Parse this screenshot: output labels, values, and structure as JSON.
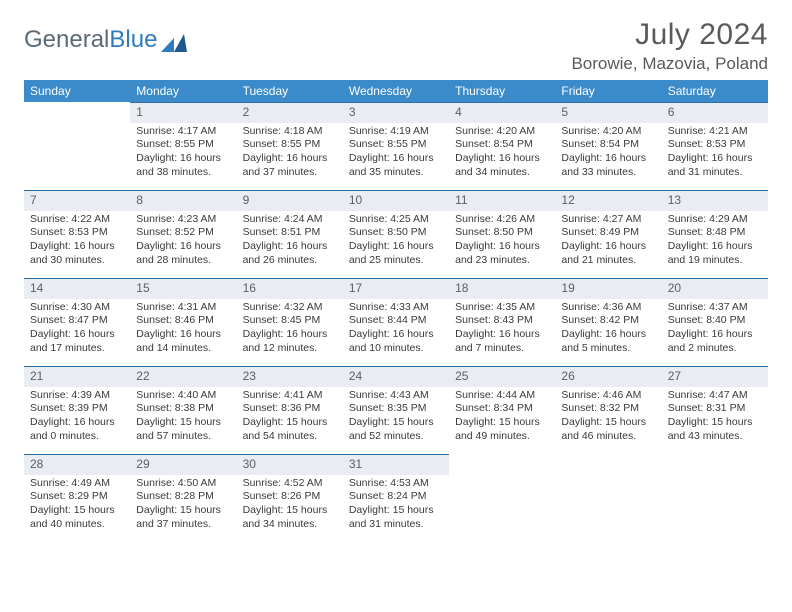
{
  "brand": {
    "part1": "General",
    "part2": "Blue"
  },
  "title": "July 2024",
  "location": "Borowie, Mazovia, Poland",
  "colors": {
    "header_bg": "#3b8bca",
    "header_text": "#ffffff",
    "daynum_bg": "#e9edf1",
    "daynum_border": "#2f6fa8",
    "body_bg": "#ffffff",
    "text": "#3a3a3a",
    "title_text": "#5a5a5a"
  },
  "day_headers": [
    "Sunday",
    "Monday",
    "Tuesday",
    "Wednesday",
    "Thursday",
    "Friday",
    "Saturday"
  ],
  "weeks": [
    [
      {
        "num": "",
        "sunrise": "",
        "sunset": "",
        "daylight": ""
      },
      {
        "num": "1",
        "sunrise": "Sunrise: 4:17 AM",
        "sunset": "Sunset: 8:55 PM",
        "daylight": "Daylight: 16 hours and 38 minutes."
      },
      {
        "num": "2",
        "sunrise": "Sunrise: 4:18 AM",
        "sunset": "Sunset: 8:55 PM",
        "daylight": "Daylight: 16 hours and 37 minutes."
      },
      {
        "num": "3",
        "sunrise": "Sunrise: 4:19 AM",
        "sunset": "Sunset: 8:55 PM",
        "daylight": "Daylight: 16 hours and 35 minutes."
      },
      {
        "num": "4",
        "sunrise": "Sunrise: 4:20 AM",
        "sunset": "Sunset: 8:54 PM",
        "daylight": "Daylight: 16 hours and 34 minutes."
      },
      {
        "num": "5",
        "sunrise": "Sunrise: 4:20 AM",
        "sunset": "Sunset: 8:54 PM",
        "daylight": "Daylight: 16 hours and 33 minutes."
      },
      {
        "num": "6",
        "sunrise": "Sunrise: 4:21 AM",
        "sunset": "Sunset: 8:53 PM",
        "daylight": "Daylight: 16 hours and 31 minutes."
      }
    ],
    [
      {
        "num": "7",
        "sunrise": "Sunrise: 4:22 AM",
        "sunset": "Sunset: 8:53 PM",
        "daylight": "Daylight: 16 hours and 30 minutes."
      },
      {
        "num": "8",
        "sunrise": "Sunrise: 4:23 AM",
        "sunset": "Sunset: 8:52 PM",
        "daylight": "Daylight: 16 hours and 28 minutes."
      },
      {
        "num": "9",
        "sunrise": "Sunrise: 4:24 AM",
        "sunset": "Sunset: 8:51 PM",
        "daylight": "Daylight: 16 hours and 26 minutes."
      },
      {
        "num": "10",
        "sunrise": "Sunrise: 4:25 AM",
        "sunset": "Sunset: 8:50 PM",
        "daylight": "Daylight: 16 hours and 25 minutes."
      },
      {
        "num": "11",
        "sunrise": "Sunrise: 4:26 AM",
        "sunset": "Sunset: 8:50 PM",
        "daylight": "Daylight: 16 hours and 23 minutes."
      },
      {
        "num": "12",
        "sunrise": "Sunrise: 4:27 AM",
        "sunset": "Sunset: 8:49 PM",
        "daylight": "Daylight: 16 hours and 21 minutes."
      },
      {
        "num": "13",
        "sunrise": "Sunrise: 4:29 AM",
        "sunset": "Sunset: 8:48 PM",
        "daylight": "Daylight: 16 hours and 19 minutes."
      }
    ],
    [
      {
        "num": "14",
        "sunrise": "Sunrise: 4:30 AM",
        "sunset": "Sunset: 8:47 PM",
        "daylight": "Daylight: 16 hours and 17 minutes."
      },
      {
        "num": "15",
        "sunrise": "Sunrise: 4:31 AM",
        "sunset": "Sunset: 8:46 PM",
        "daylight": "Daylight: 16 hours and 14 minutes."
      },
      {
        "num": "16",
        "sunrise": "Sunrise: 4:32 AM",
        "sunset": "Sunset: 8:45 PM",
        "daylight": "Daylight: 16 hours and 12 minutes."
      },
      {
        "num": "17",
        "sunrise": "Sunrise: 4:33 AM",
        "sunset": "Sunset: 8:44 PM",
        "daylight": "Daylight: 16 hours and 10 minutes."
      },
      {
        "num": "18",
        "sunrise": "Sunrise: 4:35 AM",
        "sunset": "Sunset: 8:43 PM",
        "daylight": "Daylight: 16 hours and 7 minutes."
      },
      {
        "num": "19",
        "sunrise": "Sunrise: 4:36 AM",
        "sunset": "Sunset: 8:42 PM",
        "daylight": "Daylight: 16 hours and 5 minutes."
      },
      {
        "num": "20",
        "sunrise": "Sunrise: 4:37 AM",
        "sunset": "Sunset: 8:40 PM",
        "daylight": "Daylight: 16 hours and 2 minutes."
      }
    ],
    [
      {
        "num": "21",
        "sunrise": "Sunrise: 4:39 AM",
        "sunset": "Sunset: 8:39 PM",
        "daylight": "Daylight: 16 hours and 0 minutes."
      },
      {
        "num": "22",
        "sunrise": "Sunrise: 4:40 AM",
        "sunset": "Sunset: 8:38 PM",
        "daylight": "Daylight: 15 hours and 57 minutes."
      },
      {
        "num": "23",
        "sunrise": "Sunrise: 4:41 AM",
        "sunset": "Sunset: 8:36 PM",
        "daylight": "Daylight: 15 hours and 54 minutes."
      },
      {
        "num": "24",
        "sunrise": "Sunrise: 4:43 AM",
        "sunset": "Sunset: 8:35 PM",
        "daylight": "Daylight: 15 hours and 52 minutes."
      },
      {
        "num": "25",
        "sunrise": "Sunrise: 4:44 AM",
        "sunset": "Sunset: 8:34 PM",
        "daylight": "Daylight: 15 hours and 49 minutes."
      },
      {
        "num": "26",
        "sunrise": "Sunrise: 4:46 AM",
        "sunset": "Sunset: 8:32 PM",
        "daylight": "Daylight: 15 hours and 46 minutes."
      },
      {
        "num": "27",
        "sunrise": "Sunrise: 4:47 AM",
        "sunset": "Sunset: 8:31 PM",
        "daylight": "Daylight: 15 hours and 43 minutes."
      }
    ],
    [
      {
        "num": "28",
        "sunrise": "Sunrise: 4:49 AM",
        "sunset": "Sunset: 8:29 PM",
        "daylight": "Daylight: 15 hours and 40 minutes."
      },
      {
        "num": "29",
        "sunrise": "Sunrise: 4:50 AM",
        "sunset": "Sunset: 8:28 PM",
        "daylight": "Daylight: 15 hours and 37 minutes."
      },
      {
        "num": "30",
        "sunrise": "Sunrise: 4:52 AM",
        "sunset": "Sunset: 8:26 PM",
        "daylight": "Daylight: 15 hours and 34 minutes."
      },
      {
        "num": "31",
        "sunrise": "Sunrise: 4:53 AM",
        "sunset": "Sunset: 8:24 PM",
        "daylight": "Daylight: 15 hours and 31 minutes."
      },
      {
        "num": "",
        "sunrise": "",
        "sunset": "",
        "daylight": ""
      },
      {
        "num": "",
        "sunrise": "",
        "sunset": "",
        "daylight": ""
      },
      {
        "num": "",
        "sunrise": "",
        "sunset": "",
        "daylight": ""
      }
    ]
  ]
}
